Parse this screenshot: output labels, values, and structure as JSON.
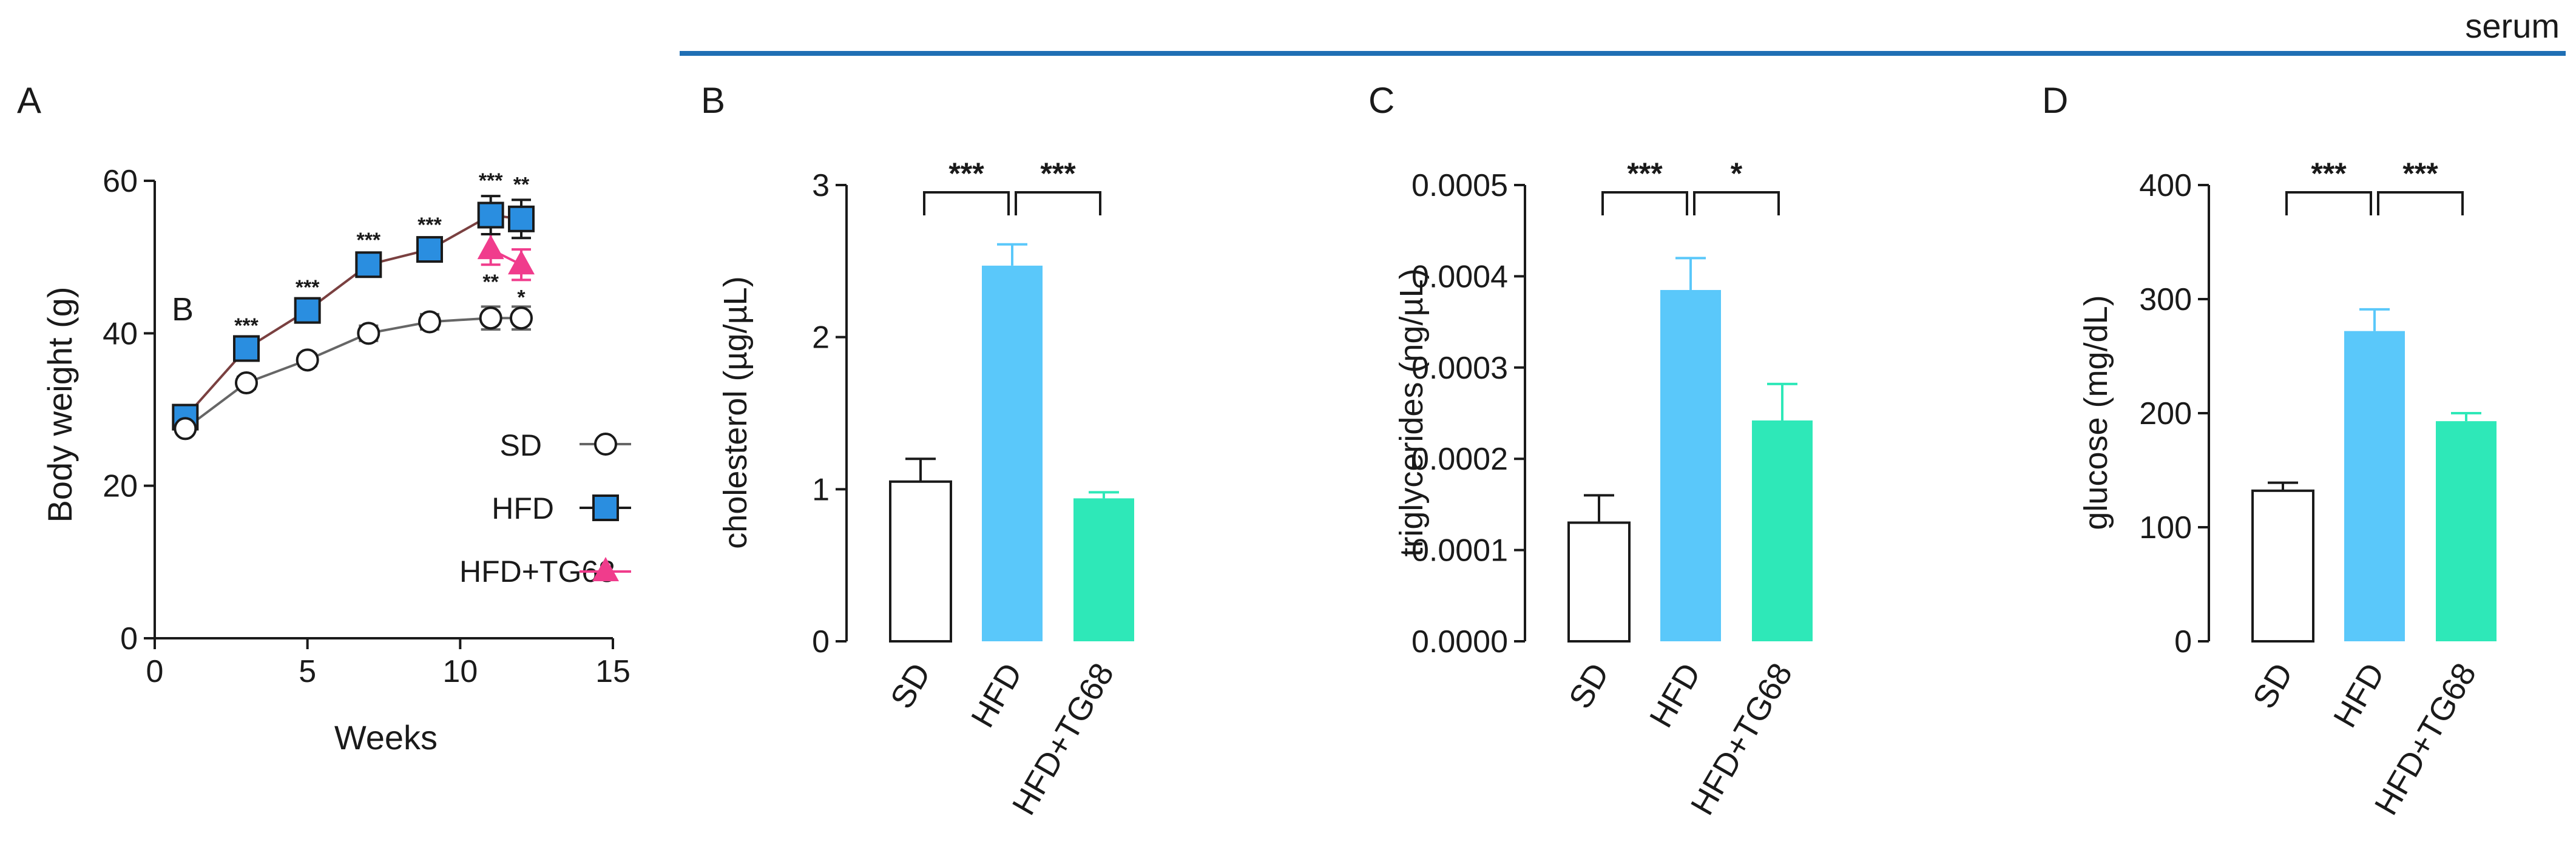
{
  "header": {
    "label": "serum"
  },
  "colors": {
    "sd_fill": "#ffffff",
    "hfd": "#5ac8fa",
    "hfd_marker": "#2a8ee0",
    "tg": "#2ee8b8",
    "tg_marker": "#f03c8c",
    "hfd_line": "#7a4040",
    "sd_line": "#666666",
    "axis": "#1a1a1a",
    "header_rule": "#1f6fb4"
  },
  "chart_data": [
    {
      "panel": "A",
      "type": "line",
      "xlabel": "Weeks",
      "ylabel": "Body weight (g)",
      "xlim": [
        0,
        15
      ],
      "ylim": [
        0,
        60
      ],
      "xticks": [
        "0",
        "5",
        "10",
        "15"
      ],
      "yticks": [
        "0",
        "20",
        "40",
        "60"
      ],
      "inset_letter": "B",
      "series": [
        {
          "name": "SD",
          "marker": "circle",
          "x": [
            1,
            3,
            5,
            7,
            9,
            11,
            12
          ],
          "y": [
            27.5,
            33.5,
            36.5,
            40,
            41.5,
            42,
            42
          ],
          "err": [
            0.6,
            0.8,
            0.8,
            1.0,
            1.0,
            1.5,
            1.5
          ]
        },
        {
          "name": "HFD",
          "marker": "square",
          "x": [
            1,
            3,
            5,
            7,
            9,
            11,
            12
          ],
          "y": [
            29,
            38,
            43,
            49,
            51,
            55.5,
            55
          ],
          "err": [
            0.8,
            1.0,
            1.0,
            1.2,
            1.2,
            2.5,
            2.5
          ],
          "sig": [
            "",
            "***",
            "***",
            "***",
            "***",
            "***",
            "**"
          ]
        },
        {
          "name": "HFD+TG68",
          "marker": "triangle",
          "x": [
            11,
            12
          ],
          "y": [
            51,
            49
          ],
          "err": [
            2.0,
            2.0
          ],
          "sig": [
            "**",
            "*"
          ]
        }
      ]
    },
    {
      "panel": "B",
      "type": "bar",
      "ylabel": "cholesterol (µg/µL)",
      "categories": [
        "SD",
        "HFD",
        "HFD+TG68"
      ],
      "values": [
        1.05,
        2.47,
        0.94
      ],
      "errors": [
        0.15,
        0.14,
        0.04
      ],
      "ylim": [
        0,
        3
      ],
      "yticks": [
        "0",
        "1",
        "2",
        "3"
      ],
      "significance": [
        {
          "from": 0,
          "to": 1,
          "label": "***"
        },
        {
          "from": 1,
          "to": 2,
          "label": "***"
        }
      ]
    },
    {
      "panel": "C",
      "type": "bar",
      "ylabel": "triglycerides (ng/µL)",
      "categories": [
        "SD",
        "HFD",
        "HFD+TG68"
      ],
      "values": [
        0.00013,
        0.000385,
        0.000242
      ],
      "errors": [
        3e-05,
        3.5e-05,
        4e-05
      ],
      "ylim": [
        0,
        0.0005
      ],
      "yticks": [
        "0.0000",
        "0.0001",
        "0.0002",
        "0.0003",
        "0.0004",
        "0.0005"
      ],
      "significance": [
        {
          "from": 0,
          "to": 1,
          "label": "***"
        },
        {
          "from": 1,
          "to": 2,
          "label": "*"
        }
      ]
    },
    {
      "panel": "D",
      "type": "bar",
      "ylabel": "glucose (mg/dL)",
      "categories": [
        "SD",
        "HFD",
        "HFD+TG68"
      ],
      "values": [
        132,
        272,
        193
      ],
      "errors": [
        7,
        19,
        7
      ],
      "ylim": [
        0,
        400
      ],
      "yticks": [
        "0",
        "100",
        "200",
        "300",
        "400"
      ],
      "significance": [
        {
          "from": 0,
          "to": 1,
          "label": "***"
        },
        {
          "from": 1,
          "to": 2,
          "label": "***"
        }
      ]
    }
  ]
}
